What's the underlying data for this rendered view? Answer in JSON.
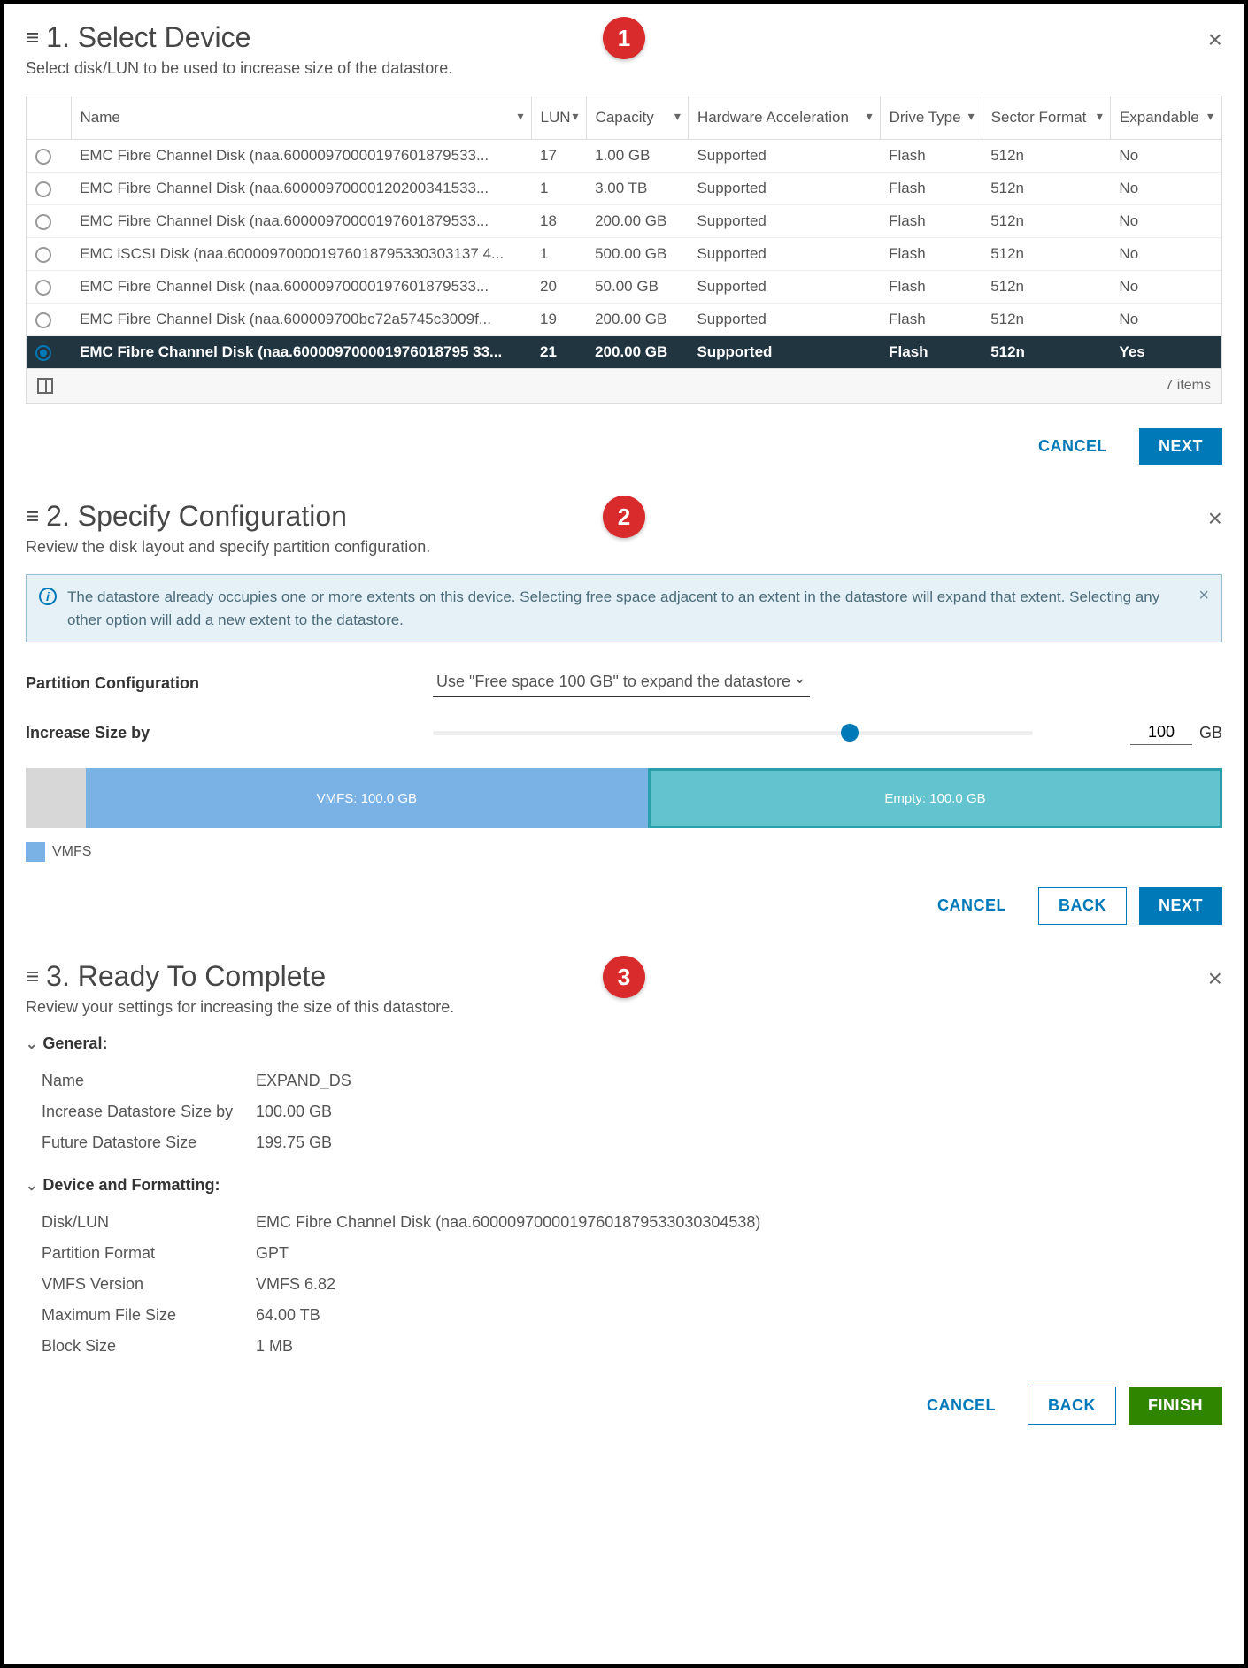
{
  "steps": {
    "s1": {
      "title": "1. Select Device",
      "subtitle": "Select disk/LUN to be used to increase size of the datastore.",
      "callout": "1"
    },
    "s2": {
      "title": "2. Specify Configuration",
      "subtitle": "Review the disk layout and specify partition configuration.",
      "callout": "2"
    },
    "s3": {
      "title": "3. Ready To Complete",
      "subtitle": "Review your settings for increasing the size of this datastore.",
      "callout": "3"
    }
  },
  "table": {
    "columns": [
      "Name",
      "LUN",
      "Capacity",
      "Hardware Acceleration",
      "Drive Type",
      "Sector Format",
      "Expandable"
    ],
    "rows": [
      {
        "selected": false,
        "name": "EMC Fibre Channel Disk (naa.60000970000197601879533...",
        "lun": "17",
        "cap": "1.00 GB",
        "ha": "Supported",
        "dt": "Flash",
        "sf": "512n",
        "exp": "No"
      },
      {
        "selected": false,
        "name": "EMC Fibre Channel Disk (naa.60000970000120200341533...",
        "lun": "1",
        "cap": "3.00 TB",
        "ha": "Supported",
        "dt": "Flash",
        "sf": "512n",
        "exp": "No"
      },
      {
        "selected": false,
        "name": "EMC Fibre Channel Disk (naa.60000970000197601879533...",
        "lun": "18",
        "cap": "200.00 GB",
        "ha": "Supported",
        "dt": "Flash",
        "sf": "512n",
        "exp": "No"
      },
      {
        "selected": false,
        "name": "EMC iSCSI Disk (naa.600009700001976018795330303137 4...",
        "lun": "1",
        "cap": "500.00 GB",
        "ha": "Supported",
        "dt": "Flash",
        "sf": "512n",
        "exp": "No"
      },
      {
        "selected": false,
        "name": "EMC Fibre Channel Disk (naa.60000970000197601879533...",
        "lun": "20",
        "cap": "50.00 GB",
        "ha": "Supported",
        "dt": "Flash",
        "sf": "512n",
        "exp": "No"
      },
      {
        "selected": false,
        "name": "EMC Fibre Channel Disk (naa.600009700bc72a5745c3009f...",
        "lun": "19",
        "cap": "200.00 GB",
        "ha": "Supported",
        "dt": "Flash",
        "sf": "512n",
        "exp": "No"
      },
      {
        "selected": true,
        "name": "EMC Fibre Channel Disk (naa.600009700001976018795 33...",
        "lun": "21",
        "cap": "200.00 GB",
        "ha": "Supported",
        "dt": "Flash",
        "sf": "512n",
        "exp": "Yes"
      }
    ],
    "items_label": "7 items"
  },
  "buttons": {
    "cancel": "CANCEL",
    "next": "NEXT",
    "back": "BACK",
    "finish": "FINISH"
  },
  "info_msg": "The datastore already occupies one or more extents on this device. Selecting free space adjacent to an extent in the datastore will expand that extent. Selecting any other option will add a new extent to the datastore.",
  "config": {
    "partition_label": "Partition Configuration",
    "partition_value": "Use \"Free space 100 GB\" to expand the datastore",
    "increase_label": "Increase Size by",
    "increase_value": "100",
    "increase_unit": "GB",
    "slider_pct": 68
  },
  "partitions": {
    "segments": [
      {
        "label": "",
        "width_pct": 5,
        "bg": "#d7d7d7",
        "border": "#d7d7d7",
        "text": "#fff"
      },
      {
        "label": "VMFS: 100.0 GB",
        "width_pct": 47,
        "bg": "#7ab2e6",
        "border": "#7ab2e6",
        "text": "#fff"
      },
      {
        "label": "Empty: 100.0 GB",
        "width_pct": 48,
        "bg": "#63c4cf",
        "border": "#2aa0ad",
        "text": "#fff"
      }
    ],
    "legend_label": "VMFS",
    "legend_color": "#7ab2e6"
  },
  "summary": {
    "general_heading": "General:",
    "device_heading": "Device and Formatting:",
    "general": [
      {
        "k": "Name",
        "v": "EXPAND_DS"
      },
      {
        "k": "Increase Datastore Size by",
        "v": "100.00 GB"
      },
      {
        "k": "Future Datastore Size",
        "v": "199.75 GB"
      }
    ],
    "device": [
      {
        "k": "Disk/LUN",
        "v": "EMC Fibre Channel Disk (naa.60000970000197601879533030304538)"
      },
      {
        "k": "Partition Format",
        "v": "GPT"
      },
      {
        "k": "VMFS Version",
        "v": "VMFS 6.82"
      },
      {
        "k": "Maximum File Size",
        "v": "64.00 TB"
      },
      {
        "k": "Block Size",
        "v": "1 MB"
      }
    ]
  }
}
